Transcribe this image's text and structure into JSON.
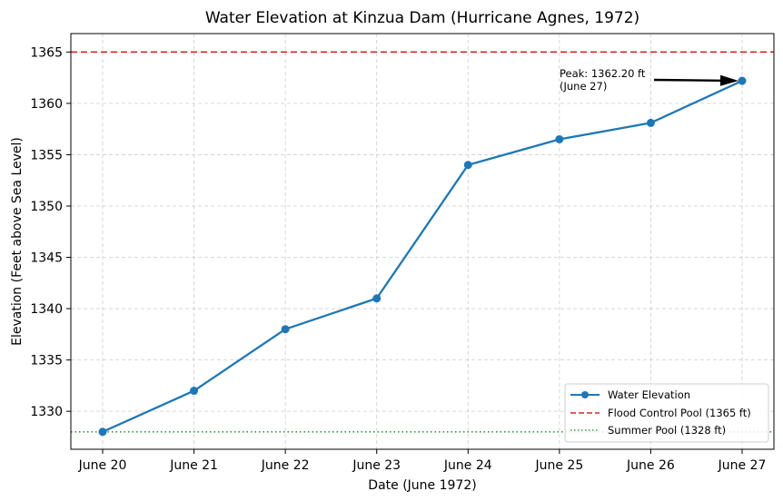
{
  "chart_data": {
    "type": "line",
    "title": "Water Elevation at Kinzua Dam (Hurricane Agnes, 1972)",
    "xlabel": "Date (June 1972)",
    "ylabel": "Elevation (Feet above Sea Level)",
    "categories": [
      "June 20",
      "June 21",
      "June 22",
      "June 23",
      "June 24",
      "June 25",
      "June 26",
      "June 27"
    ],
    "series": [
      {
        "name": "Water Elevation",
        "values": [
          1328.0,
          1332.0,
          1338.0,
          1341.0,
          1354.0,
          1356.5,
          1358.1,
          1362.2
        ],
        "color": "#1f77b4",
        "marker": "circle"
      }
    ],
    "reference_lines": [
      {
        "name": "Flood Control Pool (1365 ft)",
        "value": 1365,
        "color": "#d62728",
        "style": "dashed"
      },
      {
        "name": "Summer Pool (1328 ft)",
        "value": 1328,
        "color": "#2ca02c",
        "style": "dotted"
      }
    ],
    "yticks": [
      1330,
      1335,
      1340,
      1345,
      1350,
      1355,
      1360,
      1365
    ],
    "ylim": [
      1326.3,
      1366.8
    ],
    "grid": true,
    "legend_position": "bottom-right",
    "annotation": {
      "line1": "Peak: 1362.20 ft",
      "line2": "(June 27)",
      "target_index": 7
    }
  }
}
